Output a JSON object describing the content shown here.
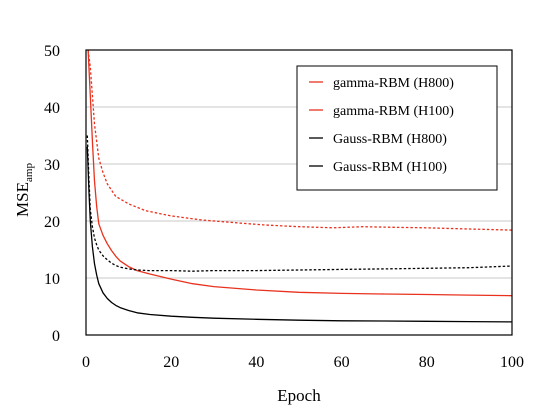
{
  "chart_data": {
    "type": "line",
    "xlabel": "Epoch",
    "ylabel_main": "MSE",
    "ylabel_sub": "amp",
    "xlim": [
      0,
      100
    ],
    "ylim": [
      0,
      50
    ],
    "xticks": [
      0,
      20,
      40,
      60,
      80,
      100
    ],
    "yticks": [
      0,
      10,
      20,
      30,
      40,
      50
    ],
    "grid": "horizontal",
    "legend_position": "top-right",
    "series": [
      {
        "name": "gamma-RBM (H800)",
        "color": "#e8321e",
        "dash": "dotted",
        "x": [
          0.5,
          1,
          1.5,
          2,
          3,
          4,
          5,
          7,
          10,
          14,
          20,
          27,
          35,
          42,
          50,
          58,
          65,
          72,
          80,
          90,
          100
        ],
        "y": [
          50,
          47,
          42,
          37,
          31,
          28.5,
          26.5,
          24.3,
          23,
          21.8,
          20.9,
          20.2,
          19.7,
          19.3,
          19.0,
          18.8,
          19.0,
          18.9,
          18.8,
          18.6,
          18.4
        ]
      },
      {
        "name": "gamma-RBM (H100)",
        "color": "#e8321e",
        "dash": "solid",
        "x": [
          0.5,
          1,
          1.5,
          2,
          2.5,
          3,
          4,
          5,
          6,
          7,
          8,
          10,
          12,
          15,
          20,
          25,
          30,
          40,
          50,
          60,
          70,
          80,
          90,
          100
        ],
        "y": [
          50,
          42,
          34,
          27,
          22.5,
          19.5,
          17.5,
          16,
          14.8,
          13.8,
          13,
          12,
          11.3,
          10.7,
          9.8,
          9,
          8.5,
          7.9,
          7.5,
          7.3,
          7.2,
          7.1,
          7.0,
          6.9
        ]
      },
      {
        "name": "Gauss-RBM (H800)",
        "color": "#000000",
        "dash": "solid",
        "x": [
          0.3,
          0.7,
          1,
          1.5,
          2,
          2.5,
          3,
          4,
          5,
          6,
          7,
          8,
          10,
          12,
          15,
          20,
          25,
          30,
          40,
          50,
          60,
          70,
          80,
          90,
          100
        ],
        "y": [
          33,
          25,
          20,
          15.5,
          12.5,
          10.5,
          9,
          7.4,
          6.4,
          5.7,
          5.2,
          4.8,
          4.3,
          3.9,
          3.6,
          3.3,
          3.1,
          2.95,
          2.75,
          2.6,
          2.5,
          2.45,
          2.4,
          2.35,
          2.3
        ]
      },
      {
        "name": "Gauss-RBM (H100)",
        "color": "#000000",
        "dash": "dotted",
        "x": [
          0.3,
          0.7,
          1,
          1.5,
          2,
          2.5,
          3,
          4,
          5,
          6,
          7,
          8,
          10,
          12,
          15,
          20,
          25,
          30,
          40,
          50,
          60,
          70,
          80,
          90,
          100
        ],
        "y": [
          35,
          27,
          22,
          19,
          17,
          15.8,
          14.9,
          13.9,
          13.2,
          12.6,
          12.2,
          11.9,
          11.6,
          11.4,
          11.3,
          11.3,
          11.2,
          11.3,
          11.3,
          11.4,
          11.5,
          11.6,
          11.7,
          11.8,
          12.1
        ]
      }
    ]
  }
}
